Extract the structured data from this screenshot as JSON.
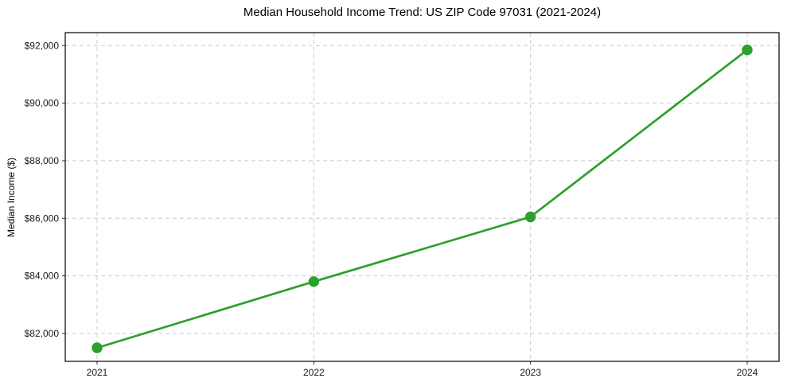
{
  "page": {
    "background": "#ffffff"
  },
  "chart_data": {
    "type": "line",
    "title": "Median Household Income Trend: US ZIP Code 97031 (2021-2024)",
    "xlabel": "",
    "ylabel": "Median Income ($)",
    "x": [
      2021,
      2022,
      2023,
      2024
    ],
    "xticklabels": [
      "2021",
      "2022",
      "2023",
      "2024"
    ],
    "yticks": [
      82000,
      84000,
      86000,
      88000,
      90000,
      92000
    ],
    "yticklabels": [
      "$82,000",
      "$84,000",
      "$86,000",
      "$88,000",
      "$90,000",
      "$92,000"
    ],
    "ylim": [
      81030,
      92450
    ],
    "series": [
      {
        "name": "Median Household Income",
        "values": [
          81500,
          83800,
          86050,
          91850
        ],
        "color": "#2ca02c",
        "marker": "circle"
      }
    ],
    "grid": true,
    "grid_style": "dashed",
    "grid_color": "#cccccc",
    "frame_color": "#000000",
    "legend": "none"
  }
}
